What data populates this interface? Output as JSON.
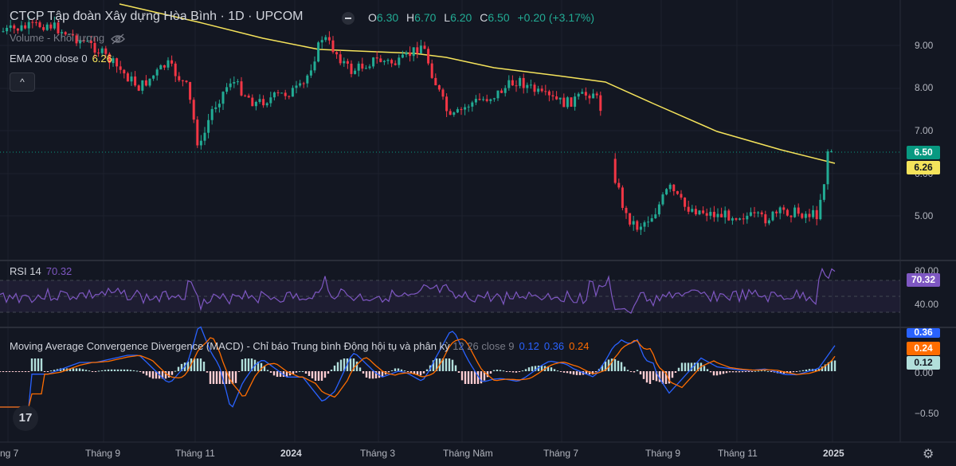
{
  "legend": {
    "title": "CTCP Tập đoàn Xây dựng Hòa Bình · 1D · UPCOM",
    "ohlc": [
      {
        "k": "O",
        "v": "6.30"
      },
      {
        "k": "H",
        "v": "6.70"
      },
      {
        "k": "L",
        "v": "6.20"
      },
      {
        "k": "C",
        "v": "6.50"
      }
    ],
    "change": "+0.20 (+3.17%)",
    "volume_label": "Volume - Khối lượng",
    "ema_label": "EMA 200 close 0",
    "ema_value": "6.26",
    "collapse_icon": "^"
  },
  "rsi": {
    "label": "RSI 14",
    "value": "70.32"
  },
  "macd": {
    "label": "Moving Average Convergence Divergence (MACD) - Chỉ báo Trung bình Động hội tụ và phân kỳ",
    "params": "12 26 close 9",
    "v1": "0.12",
    "v2": "0.36",
    "v3": "0.24"
  },
  "price_axis": [
    "9.00",
    "8.00",
    "7.00",
    "6.00",
    "5.00"
  ],
  "rsi_axis": [
    "80.00",
    "40.00"
  ],
  "macd_axis": [
    "0.00",
    "−0.50"
  ],
  "price_tags": {
    "last": "6.50",
    "ema": "6.26"
  },
  "rsi_tag": "70.32",
  "macd_tags": {
    "top": "0.36",
    "mid": "0.24",
    "low": "0.12"
  },
  "time_axis": [
    {
      "label": "ng 7",
      "bold": false
    },
    {
      "label": "Tháng 9",
      "bold": false
    },
    {
      "label": "Tháng 11",
      "bold": false
    },
    {
      "label": "2024",
      "bold": true
    },
    {
      "label": "Tháng 3",
      "bold": false
    },
    {
      "label": "Tháng Năm",
      "bold": false
    },
    {
      "label": "Tháng 7",
      "bold": false
    },
    {
      "label": "Tháng 9",
      "bold": false
    },
    {
      "label": "Tháng 11",
      "bold": false
    },
    {
      "label": "2025",
      "bold": true
    }
  ],
  "colors": {
    "background": "#131722",
    "up": "#22ab94",
    "down": "#f23645",
    "ema": "#f5e35b",
    "rsi": "#7e57c2",
    "macd": "#2962ff",
    "signal": "#ff6d00",
    "hist_up": "#b2dfdb",
    "hist_down": "#ffcdd2"
  },
  "logo_text": "17",
  "icons": {
    "settings": "gear-icon",
    "visibility": "eye-off-icon",
    "logo": "tradingview-logo"
  }
}
